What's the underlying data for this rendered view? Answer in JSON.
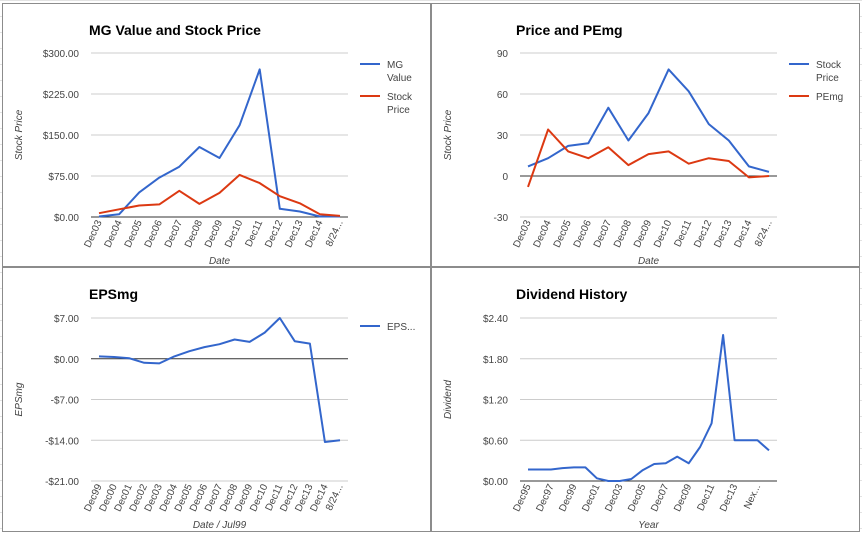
{
  "colors": {
    "blue": "#3366cc",
    "red": "#dc3912",
    "grid": "#cccccc",
    "zero": "#333333",
    "text": "#444444"
  },
  "chart_data": [
    {
      "type": "line",
      "title": "MG Value and Stock Price",
      "xlabel": "Date",
      "ylabel": "Stock Price",
      "ylim": [
        0,
        300
      ],
      "yticks": [
        0,
        75,
        150,
        225,
        300
      ],
      "ytick_labels": [
        "$0.00",
        "$75.00",
        "$150.00",
        "$225.00",
        "$300.00"
      ],
      "categories": [
        "Dec03",
        "Dec04",
        "Dec05",
        "Dec06",
        "Dec07",
        "Dec08",
        "Dec09",
        "Dec10",
        "Dec11",
        "Dec12",
        "Dec13",
        "Dec14",
        "8/24..."
      ],
      "x": [
        0,
        1,
        2,
        3,
        4,
        5,
        6,
        7,
        8,
        9,
        10,
        11,
        12
      ],
      "legend_position": "right",
      "series": [
        {
          "name": "MG Value",
          "color": "#3366cc",
          "values": [
            1,
            5,
            45,
            72,
            92,
            128,
            108,
            168,
            270,
            15,
            10,
            1,
            1
          ]
        },
        {
          "name": "Stock Price",
          "color": "#dc3912",
          "values": [
            7,
            14,
            21,
            23,
            48,
            24,
            44,
            77,
            62,
            38,
            25,
            5,
            2
          ]
        }
      ]
    },
    {
      "type": "line",
      "title": "Price and PEmg",
      "xlabel": "Date",
      "ylabel": "Stock Price",
      "ylim": [
        -30,
        90
      ],
      "yticks": [
        -30,
        0,
        30,
        60,
        90
      ],
      "ytick_labels": [
        "-30",
        "0",
        "30",
        "60",
        "90"
      ],
      "categories": [
        "Dec03",
        "Dec04",
        "Dec05",
        "Dec06",
        "Dec07",
        "Dec08",
        "Dec09",
        "Dec10",
        "Dec11",
        "Dec12",
        "Dec13",
        "Dec14",
        "8/24..."
      ],
      "x": [
        0,
        1,
        2,
        3,
        4,
        5,
        6,
        7,
        8,
        9,
        10,
        11,
        12
      ],
      "legend_position": "right",
      "series": [
        {
          "name": "Stock Price",
          "color": "#3366cc",
          "values": [
            7,
            13,
            22,
            24,
            50,
            26,
            46,
            78,
            62,
            38,
            26,
            7,
            3
          ]
        },
        {
          "name": "PEmg",
          "color": "#dc3912",
          "values": [
            -8,
            34,
            18,
            13,
            21,
            8,
            16,
            18,
            9,
            13,
            11,
            -1,
            0
          ]
        }
      ]
    },
    {
      "type": "line",
      "title": "EPSmg",
      "xlabel": "Date / Jul99",
      "ylabel": "EPSmg",
      "ylim": [
        -21,
        7
      ],
      "yticks": [
        -21,
        -14,
        -7,
        0,
        7
      ],
      "ytick_labels": [
        "-$21.00",
        "-$14.00",
        "-$7.00",
        "$0.00",
        "$7.00"
      ],
      "categories": [
        "Dec99",
        "Dec00",
        "Dec01",
        "Dec02",
        "Dec03",
        "Dec04",
        "Dec05",
        "Dec06",
        "Dec07",
        "Dec08",
        "Dec09",
        "Dec10",
        "Dec11",
        "Dec12",
        "Dec13",
        "Dec14",
        "8/24..."
      ],
      "x": [
        0,
        1,
        2,
        3,
        4,
        5,
        6,
        7,
        8,
        9,
        10,
        11,
        12,
        13,
        14,
        15,
        16
      ],
      "legend_position": "right",
      "series": [
        {
          "name": "EPS...",
          "color": "#3366cc",
          "values": [
            0.4,
            0.3,
            0.1,
            -0.7,
            -0.8,
            0.4,
            1.3,
            2.0,
            2.5,
            3.3,
            2.9,
            4.5,
            7.0,
            3.0,
            2.6,
            -14.3,
            -14.0
          ]
        }
      ]
    },
    {
      "type": "line",
      "title": "Dividend History",
      "xlabel": "Year",
      "ylabel": "Dividend",
      "ylim": [
        0,
        2.4
      ],
      "yticks": [
        0,
        0.6,
        1.2,
        1.8,
        2.4
      ],
      "ytick_labels": [
        "$0.00",
        "$0.60",
        "$1.20",
        "$1.80",
        "$2.40"
      ],
      "categories": [
        "Dec95",
        "Dec97",
        "Dec99",
        "Dec01",
        "Dec03",
        "Dec05",
        "Dec07",
        "Dec09",
        "Dec11",
        "Dec13",
        "Nex..."
      ],
      "category_x": [
        0,
        2,
        4,
        6,
        8,
        10,
        12,
        14,
        16,
        18,
        20
      ],
      "x": [
        0,
        1,
        2,
        3,
        4,
        5,
        6,
        7,
        8,
        9,
        10,
        11,
        12,
        13,
        14,
        15,
        16,
        17,
        18,
        19,
        20,
        21
      ],
      "legend_position": "none",
      "series": [
        {
          "name": "",
          "color": "#3366cc",
          "values": [
            0.17,
            0.17,
            0.17,
            0.19,
            0.2,
            0.2,
            0.04,
            0.0,
            0.0,
            0.03,
            0.16,
            0.25,
            0.26,
            0.36,
            0.26,
            0.5,
            0.85,
            2.15,
            0.6,
            0.6,
            0.6,
            0.45
          ]
        }
      ]
    }
  ]
}
